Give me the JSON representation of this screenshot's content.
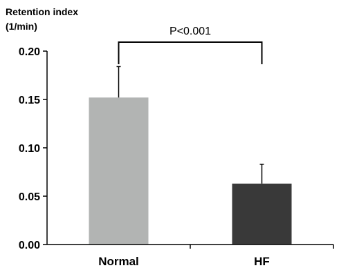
{
  "chart_data": {
    "type": "bar",
    "ylabel_line1": "Retention index",
    "ylabel_line2": "(1/min)",
    "categories": [
      "Normal",
      "HF"
    ],
    "values": [
      0.152,
      0.063
    ],
    "errors": [
      0.032,
      0.02
    ],
    "colors": [
      "#b2b4b3",
      "#393939"
    ],
    "ylim": [
      0,
      0.2
    ],
    "yticks": [
      "0.00",
      "0.05",
      "0.10",
      "0.15",
      "0.20"
    ],
    "ytick_values": [
      0,
      0.05,
      0.1,
      0.15,
      0.2
    ],
    "annotation": "P<0.001",
    "grid": false
  }
}
